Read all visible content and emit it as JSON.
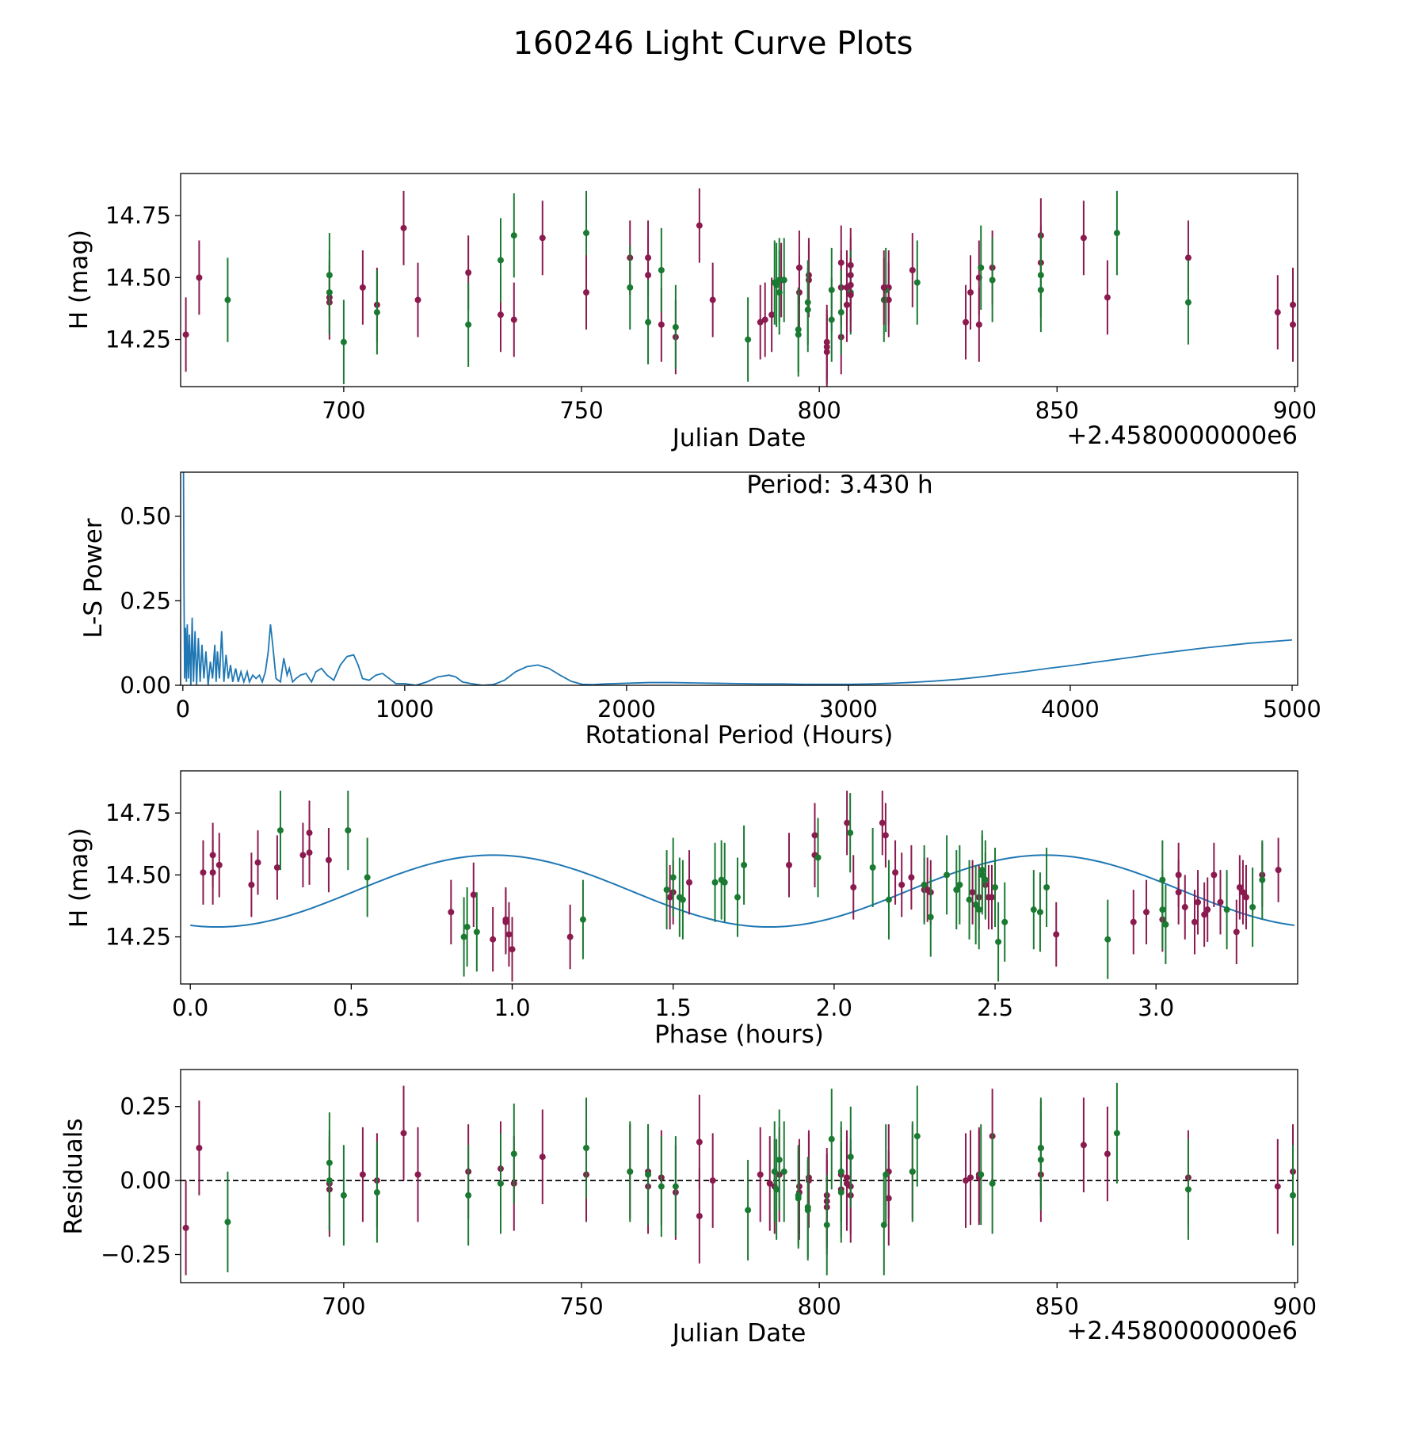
{
  "figure_title": "160246 Light Curve Plots",
  "colors": {
    "maroon": "#8b1a4f",
    "green": "#1a7a32",
    "blue": "#1f77b4",
    "black": "#000000"
  },
  "chart_data": [
    {
      "id": "lightcurve",
      "type": "scatter",
      "title": "",
      "xlabel": "Julian Date",
      "ylabel": "H (mag)",
      "offset_text": "+2.4580000000e6",
      "xlim": [
        2458665.7,
        2458900.6
      ],
      "ylim": [
        14.06,
        14.92
      ],
      "xticks": [
        700,
        750,
        800,
        850,
        900
      ],
      "xtick_labels": [
        "700",
        "750",
        "800",
        "850",
        "900"
      ],
      "yticks": [
        14.25,
        14.5,
        14.75
      ],
      "ytick_labels": [
        "14.25",
        "14.50",
        "14.75"
      ],
      "series": [
        {
          "name": "filter-1",
          "color": "#8b1a4f",
          "err": 0.15,
          "x": [
            666.8,
            669.6,
            697.0,
            697.0,
            704.0,
            707.0,
            712.6,
            715.6,
            726.2,
            733.0,
            735.8,
            741.8,
            760.2,
            764.0,
            764.0,
            766.8,
            769.8,
            774.8,
            777.6,
            787.6,
            790.0,
            792.0,
            795.8,
            795.8,
            797.8,
            797.8,
            801.6,
            801.6,
            801.6,
            804.6,
            804.6,
            804.6,
            805.8,
            805.8,
            806.6,
            806.6,
            806.6,
            814.6,
            814.6,
            819.6,
            830.8,
            831.8,
            833.6,
            833.6,
            836.4,
            846.6,
            846.6,
            855.6,
            860.6,
            877.6,
            896.4,
            899.6,
            899.6
          ],
          "y": [
            14.27,
            14.5,
            14.4,
            14.42,
            14.46,
            14.39,
            14.7,
            14.41,
            14.52,
            14.35,
            14.33,
            14.66,
            14.58,
            14.58,
            14.51,
            14.31,
            14.26,
            14.71,
            14.41,
            14.32,
            14.35,
            14.49,
            14.54,
            14.44,
            14.51,
            14.49,
            14.24,
            14.22,
            14.2,
            14.56,
            14.46,
            14.26,
            14.46,
            14.39,
            14.55,
            14.51,
            14.47,
            14.46,
            14.41,
            14.53,
            14.32,
            14.44,
            14.5,
            14.31,
            14.54,
            14.67,
            14.56,
            14.66,
            14.42,
            14.58,
            14.36,
            14.39,
            14.31
          ]
        },
        {
          "name": "filter-2",
          "color": "#1a7a32",
          "err": 0.17,
          "x": [
            675.6,
            697.0,
            697.0,
            700.0,
            707.0,
            726.2,
            733.0,
            735.8,
            751.0,
            760.2,
            764.0,
            766.8,
            769.8,
            785.0,
            790.6,
            791.0,
            791.6,
            791.6,
            792.6,
            795.6,
            795.6,
            797.6,
            797.6,
            802.6,
            802.6,
            804.6,
            806.6,
            813.6,
            814.0,
            820.6,
            834.0,
            836.4,
            846.6,
            846.6,
            862.6,
            877.6
          ],
          "y": [
            14.41,
            14.44,
            14.51,
            14.24,
            14.36,
            14.31,
            14.57,
            14.67,
            14.68,
            14.46,
            14.32,
            14.53,
            14.3,
            14.25,
            14.48,
            14.47,
            14.44,
            14.49,
            14.49,
            14.27,
            14.29,
            14.37,
            14.4,
            14.33,
            14.45,
            14.36,
            14.44,
            14.41,
            14.45,
            14.48,
            14.54,
            14.49,
            14.45,
            14.51,
            14.68,
            14.4
          ]
        },
        {
          "name": "filter-1-late",
          "color": "#8b1a4f",
          "err": 0.15,
          "x": [
            751.0,
            788.6,
            806.6,
            813.6
          ],
          "y": [
            14.44,
            14.33,
            14.43,
            14.46
          ]
        }
      ]
    },
    {
      "id": "periodogram",
      "type": "line",
      "title": "",
      "xlabel": "Rotational Period (Hours)",
      "ylabel": "L-S Power",
      "annotation": "Period: 3.430 h",
      "xlim": [
        -10,
        5025
      ],
      "ylim": [
        0,
        0.63
      ],
      "xticks": [
        0,
        1000,
        2000,
        3000,
        4000,
        5000
      ],
      "xtick_labels": [
        "0",
        "1000",
        "2000",
        "3000",
        "4000",
        "5000"
      ],
      "yticks": [
        0.0,
        0.25,
        0.5
      ],
      "ytick_labels": [
        "0.00",
        "0.25",
        "0.50"
      ],
      "series": [
        {
          "name": "power",
          "color": "#1f77b4",
          "x": [
            3,
            5,
            8,
            12,
            16,
            20,
            25,
            30,
            36,
            42,
            48,
            55,
            62,
            70,
            78,
            86,
            95,
            104,
            114,
            124,
            134,
            144,
            150,
            156,
            165,
            175,
            185,
            195,
            205,
            215,
            225,
            238,
            250,
            262,
            275,
            290,
            300,
            315,
            330,
            345,
            358,
            372,
            385,
            395,
            405,
            420,
            440,
            455,
            470,
            480,
            495,
            510,
            530,
            555,
            580,
            600,
            625,
            650,
            680,
            710,
            740,
            770,
            790,
            810,
            840,
            870,
            900,
            930,
            960,
            1000,
            1050,
            1100,
            1150,
            1200,
            1230,
            1260,
            1300,
            1350,
            1400,
            1450,
            1500,
            1550,
            1600,
            1650,
            1700,
            1750,
            1800,
            1850,
            1900,
            2000,
            2100,
            2200,
            2300,
            2400,
            2500,
            2600,
            2700,
            2800,
            2900,
            3000,
            3100,
            3200,
            3300,
            3400,
            3500,
            3600,
            3700,
            3800,
            3900,
            4000,
            4100,
            4200,
            4300,
            4400,
            4500,
            4600,
            4700,
            4800,
            4900,
            5000
          ],
          "y": [
            0.63,
            0.3,
            0.02,
            0.17,
            0.01,
            0.18,
            0.02,
            0.15,
            0.0,
            0.2,
            0.01,
            0.16,
            0.0,
            0.14,
            0.01,
            0.12,
            0.02,
            0.1,
            0.0,
            0.07,
            0.02,
            0.12,
            0.01,
            0.1,
            0.02,
            0.16,
            0.01,
            0.09,
            0.02,
            0.06,
            0.01,
            0.05,
            0.01,
            0.04,
            0.01,
            0.04,
            0.01,
            0.03,
            0.02,
            0.03,
            0.01,
            0.04,
            0.1,
            0.18,
            0.12,
            0.02,
            0.01,
            0.08,
            0.03,
            0.05,
            0.01,
            0.02,
            0.03,
            0.035,
            0.01,
            0.04,
            0.05,
            0.03,
            0.015,
            0.06,
            0.085,
            0.09,
            0.06,
            0.02,
            0.015,
            0.03,
            0.035,
            0.02,
            0.005,
            0.005,
            0.0,
            0.01,
            0.025,
            0.03,
            0.025,
            0.01,
            0.005,
            0.0,
            0.002,
            0.015,
            0.04,
            0.055,
            0.06,
            0.05,
            0.03,
            0.012,
            0.003,
            0.002,
            0.004,
            0.006,
            0.008,
            0.008,
            0.007,
            0.006,
            0.005,
            0.004,
            0.004,
            0.003,
            0.003,
            0.003,
            0.004,
            0.006,
            0.009,
            0.013,
            0.018,
            0.025,
            0.033,
            0.041,
            0.05,
            0.058,
            0.067,
            0.076,
            0.085,
            0.094,
            0.102,
            0.11,
            0.117,
            0.124,
            0.129,
            0.134
          ]
        }
      ]
    },
    {
      "id": "phasefold",
      "type": "scatter",
      "title": "",
      "xlabel": "Phase (hours)",
      "ylabel": "H (mag)",
      "xlim": [
        -0.03,
        3.44
      ],
      "ylim": [
        14.06,
        14.92
      ],
      "xticks": [
        0.0,
        0.5,
        1.0,
        1.5,
        2.0,
        2.5,
        3.0
      ],
      "xtick_labels": [
        "0.0",
        "0.5",
        "1.0",
        "1.5",
        "2.0",
        "2.5",
        "3.0"
      ],
      "yticks": [
        14.25,
        14.5,
        14.75
      ],
      "ytick_labels": [
        "14.25",
        "14.50",
        "14.75"
      ],
      "fit": {
        "mean": 14.435,
        "amplitude": 0.145,
        "period": 1.715,
        "phase0": 0.5125,
        "color": "#1f77b4",
        "x_range": [
          0.0,
          3.43
        ]
      },
      "series": [
        {
          "name": "filter-1",
          "color": "#8b1a4f",
          "err": 0.13,
          "x": [
            0.04,
            0.07,
            0.07,
            0.09,
            0.19,
            0.21,
            0.27,
            0.35,
            0.37,
            0.37,
            0.43,
            0.81,
            0.88,
            0.94,
            0.98,
            0.98,
            0.99,
            1.0,
            1.18,
            1.49,
            1.5,
            1.55,
            1.86,
            1.94,
            1.94,
            2.04,
            2.06,
            2.15,
            2.16,
            2.19,
            2.21,
            2.24,
            2.28,
            2.29,
            2.3,
            2.43,
            2.45,
            2.47,
            2.48,
            2.49,
            2.69,
            2.93,
            2.97,
            3.02,
            3.07,
            3.07,
            3.09,
            3.12,
            3.13,
            3.15,
            3.16,
            3.18,
            3.2,
            3.25,
            3.26,
            3.27,
            3.28,
            3.33,
            3.38
          ],
          "y": [
            14.51,
            14.58,
            14.51,
            14.54,
            14.46,
            14.55,
            14.53,
            14.58,
            14.67,
            14.59,
            14.56,
            14.35,
            14.42,
            14.24,
            14.32,
            14.31,
            14.26,
            14.2,
            14.25,
            14.41,
            14.43,
            14.47,
            14.54,
            14.66,
            14.58,
            14.71,
            14.45,
            14.71,
            14.66,
            14.51,
            14.46,
            14.49,
            14.44,
            14.44,
            14.43,
            14.43,
            14.41,
            14.46,
            14.41,
            14.41,
            14.26,
            14.31,
            14.35,
            14.32,
            14.43,
            14.5,
            14.37,
            14.31,
            14.39,
            14.34,
            14.36,
            14.5,
            14.39,
            14.27,
            14.45,
            14.43,
            14.41,
            14.5,
            14.52
          ]
        },
        {
          "name": "filter-2",
          "color": "#1a7a32",
          "err": 0.16,
          "x": [
            0.28,
            0.49,
            0.55,
            0.85,
            0.86,
            0.89,
            1.22,
            1.48,
            1.5,
            1.52,
            1.53,
            1.63,
            1.65,
            1.66,
            1.7,
            1.72,
            1.95,
            2.05,
            2.12,
            2.17,
            2.28,
            2.3,
            2.35,
            2.38,
            2.39,
            2.42,
            2.44,
            2.45,
            2.46,
            2.46,
            2.47,
            2.5,
            2.51,
            2.53,
            2.62,
            2.64,
            2.66,
            2.85,
            3.02,
            3.02,
            3.03,
            3.22,
            3.3,
            3.33
          ],
          "y": [
            14.68,
            14.68,
            14.49,
            14.25,
            14.29,
            14.27,
            14.32,
            14.44,
            14.49,
            14.41,
            14.4,
            14.47,
            14.48,
            14.47,
            14.41,
            14.54,
            14.57,
            14.67,
            14.53,
            14.4,
            14.46,
            14.33,
            14.5,
            14.44,
            14.46,
            14.4,
            14.38,
            14.36,
            14.52,
            14.5,
            14.48,
            14.45,
            14.23,
            14.31,
            14.36,
            14.35,
            14.45,
            14.24,
            14.48,
            14.36,
            14.3,
            14.36,
            14.37,
            14.48
          ]
        }
      ]
    },
    {
      "id": "residuals",
      "type": "scatter",
      "title": "",
      "xlabel": "Julian Date",
      "ylabel": "Residuals",
      "offset_text": "+2.4580000000e6",
      "xlim": [
        2458665.7,
        2458900.6
      ],
      "ylim": [
        -0.345,
        0.375
      ],
      "xticks": [
        700,
        750,
        800,
        850,
        900
      ],
      "xtick_labels": [
        "700",
        "750",
        "800",
        "850",
        "900"
      ],
      "yticks": [
        -0.25,
        0.0,
        0.25
      ],
      "ytick_labels": [
        "−0.25",
        "0.00",
        "0.25"
      ],
      "reference_line": {
        "y": 0.0,
        "style": "dashed",
        "color": "#000000"
      },
      "series": [
        {
          "name": "filter-1",
          "color": "#8b1a4f",
          "err": 0.16,
          "x": [
            666.8,
            669.6,
            697.0,
            697.0,
            704.0,
            707.0,
            712.6,
            715.6,
            726.2,
            733.0,
            735.8,
            741.8,
            751.0,
            760.2,
            764.0,
            764.0,
            766.8,
            769.8,
            774.8,
            774.8,
            777.6,
            787.6,
            789.6,
            790.6,
            791.6,
            795.8,
            795.8,
            797.8,
            797.8,
            801.6,
            801.6,
            801.6,
            804.6,
            804.6,
            805.8,
            805.8,
            806.6,
            806.6,
            814.6,
            814.6,
            819.6,
            830.8,
            831.8,
            833.6,
            833.6,
            836.4,
            846.6,
            846.6,
            855.6,
            860.6,
            877.6,
            896.4,
            899.6
          ],
          "y": [
            -0.16,
            0.11,
            -0.01,
            -0.03,
            0.02,
            0.0,
            0.16,
            0.02,
            0.03,
            0.04,
            -0.01,
            0.08,
            0.02,
            0.03,
            0.03,
            -0.02,
            0.01,
            -0.04,
            0.13,
            -0.12,
            0.0,
            0.02,
            -0.01,
            -0.02,
            0.02,
            -0.02,
            -0.04,
            0.01,
            0.0,
            -0.05,
            -0.07,
            -0.09,
            0.02,
            -0.03,
            -0.01,
            0.01,
            -0.05,
            -0.02,
            0.03,
            -0.06,
            0.03,
            0.0,
            0.01,
            0.02,
            0.01,
            0.15,
            0.11,
            0.02,
            0.12,
            0.09,
            0.01,
            -0.02,
            0.03
          ]
        },
        {
          "name": "filter-2",
          "color": "#1a7a32",
          "err": 0.17,
          "x": [
            675.6,
            697.0,
            697.0,
            700.0,
            707.0,
            726.2,
            733.0,
            735.8,
            751.0,
            760.2,
            764.0,
            766.8,
            769.8,
            785.0,
            790.6,
            791.0,
            791.6,
            792.6,
            795.6,
            795.6,
            797.6,
            797.6,
            801.6,
            802.6,
            804.6,
            804.6,
            806.6,
            813.6,
            814.0,
            819.6,
            820.6,
            834.0,
            836.4,
            846.6,
            846.6,
            862.6,
            877.6,
            899.6
          ],
          "y": [
            -0.14,
            0.0,
            0.06,
            -0.05,
            -0.04,
            -0.05,
            -0.01,
            0.09,
            0.11,
            0.03,
            0.02,
            -0.02,
            -0.02,
            -0.1,
            0.03,
            -0.03,
            0.07,
            0.03,
            -0.06,
            -0.05,
            -0.1,
            -0.09,
            -0.15,
            0.14,
            0.03,
            -0.04,
            0.08,
            -0.15,
            0.02,
            0.03,
            0.15,
            0.02,
            -0.01,
            0.07,
            0.11,
            0.16,
            -0.03,
            -0.05
          ]
        }
      ]
    }
  ]
}
